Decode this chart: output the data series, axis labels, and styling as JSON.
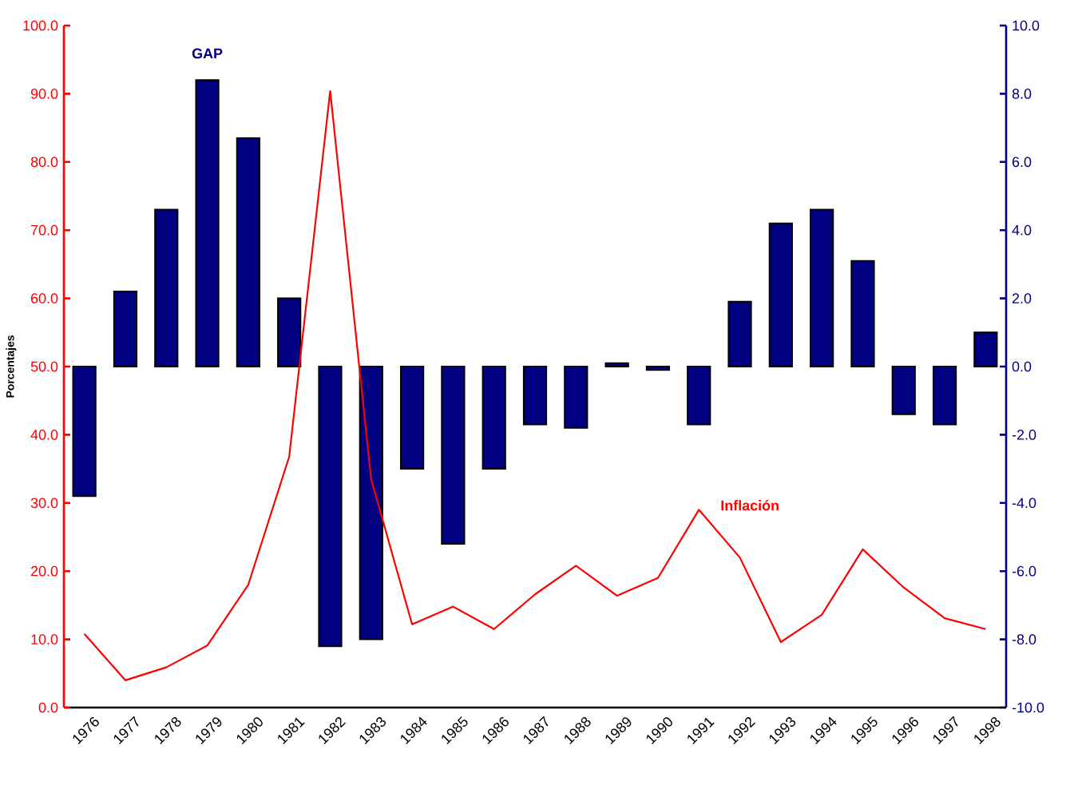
{
  "chart_data": {
    "type": "bar",
    "ylabel": "Porcentajes",
    "categories": [
      "1976",
      "1977",
      "1978",
      "1979",
      "1980",
      "1981",
      "1982",
      "1983",
      "1984",
      "1985",
      "1986",
      "1987",
      "1988",
      "1989",
      "1990",
      "1991",
      "1992",
      "1993",
      "1994",
      "1995",
      "1996",
      "1997",
      "1998"
    ],
    "series": [
      {
        "name": "GAP",
        "axis": "y2",
        "color": "#000080",
        "values": [
          -3.8,
          2.2,
          4.6,
          8.4,
          6.7,
          2.0,
          -8.2,
          -8.0,
          -3.0,
          -5.2,
          -3.0,
          -1.7,
          -1.8,
          0.1,
          -0.1,
          -1.7,
          1.9,
          4.2,
          4.6,
          3.1,
          -1.4,
          -1.7,
          1.0
        ]
      },
      {
        "name": "Inflación",
        "type": "line",
        "color": "#ff0000",
        "values": [
          10.8,
          4.0,
          5.9,
          9.1,
          18.0,
          36.8,
          90.4,
          33.5,
          12.2,
          14.8,
          11.5,
          16.6,
          20.8,
          16.4,
          19.0,
          29.0,
          22.0,
          9.6,
          13.6,
          23.2,
          17.6,
          13.1,
          11.5
        ]
      }
    ],
    "ylim": [
      0,
      100
    ],
    "yticks": [
      {
        "value": 0,
        "label": "0.0"
      },
      {
        "value": 10,
        "label": "10.0"
      },
      {
        "value": 20,
        "label": "20.0"
      },
      {
        "value": 30,
        "label": "30.0"
      },
      {
        "value": 40,
        "label": "40.0"
      },
      {
        "value": 50,
        "label": "50.0"
      },
      {
        "value": 60,
        "label": "60.0"
      },
      {
        "value": 70,
        "label": "70.0"
      },
      {
        "value": 80,
        "label": "80.0"
      },
      {
        "value": 90,
        "label": "90.0"
      },
      {
        "value": 100,
        "label": "100.0"
      }
    ],
    "y2lim": [
      -10,
      10
    ],
    "y2ticks": [
      {
        "value": -10,
        "label": "-10.0"
      },
      {
        "value": -8,
        "label": "-8.0"
      },
      {
        "value": -6,
        "label": "-6.0"
      },
      {
        "value": -4,
        "label": "-4.0"
      },
      {
        "value": -2,
        "label": "-2.0"
      },
      {
        "value": 0,
        "label": "0.0"
      },
      {
        "value": 2,
        "label": "2.0"
      },
      {
        "value": 4,
        "label": "4.0"
      },
      {
        "value": 6,
        "label": "6.0"
      },
      {
        "value": 8,
        "label": "8.0"
      },
      {
        "value": 10,
        "label": "10.0"
      }
    ],
    "grid": false,
    "marker": "none"
  }
}
